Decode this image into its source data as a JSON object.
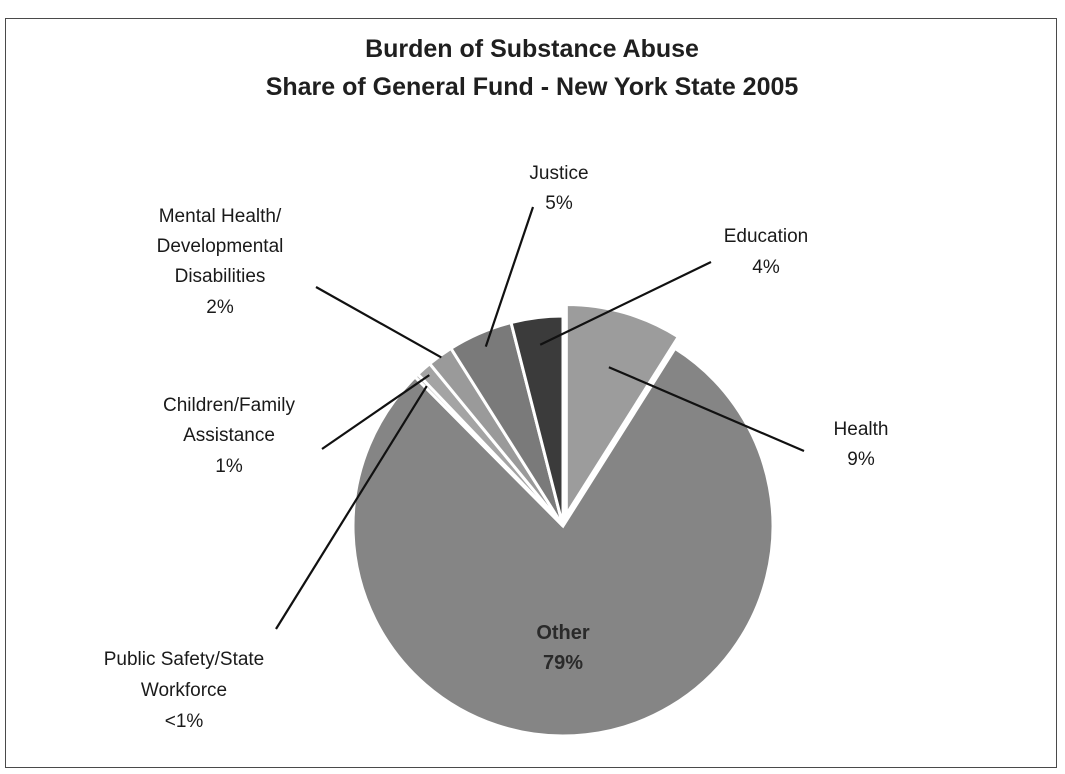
{
  "chart_data": {
    "type": "pie",
    "title": "Burden of Substance Abuse",
    "subtitle": "Share of General Fund - New York State 2005",
    "slices": [
      {
        "name": "Health",
        "value": 9,
        "display": "9%",
        "color": "#9c9c9c"
      },
      {
        "name": "Other",
        "value": 79,
        "display": "79%",
        "color": "#858585"
      },
      {
        "name": "Public Safety/State Workforce",
        "value": 0.3,
        "display": "<1%",
        "color": "#b8b8b8"
      },
      {
        "name": "Children/Family Assistance",
        "value": 1.2,
        "display": "1%",
        "color": "#a4a4a4"
      },
      {
        "name": "Mental Health/ Developmental Disabilities",
        "value": 2,
        "display": "2%",
        "color": "#9a9a9a"
      },
      {
        "name": "Justice",
        "value": 5,
        "display": "5%",
        "color": "#7a7a7a"
      },
      {
        "name": "Education",
        "value": 4,
        "display": "4%",
        "color": "#3b3b3b"
      }
    ],
    "labels": {
      "justice": [
        "Justice",
        "5%"
      ],
      "education": [
        "Education",
        "4%"
      ],
      "mental_health": [
        "Mental Health/",
        "Developmental",
        "Disabilities",
        "2%"
      ],
      "children": [
        "Children/Family",
        "Assistance",
        "1%"
      ],
      "health": [
        "Health",
        "9%"
      ],
      "public_safety": [
        "Public Safety/State",
        "Workforce",
        "<1%"
      ],
      "other": [
        "Other",
        "79%"
      ]
    }
  }
}
